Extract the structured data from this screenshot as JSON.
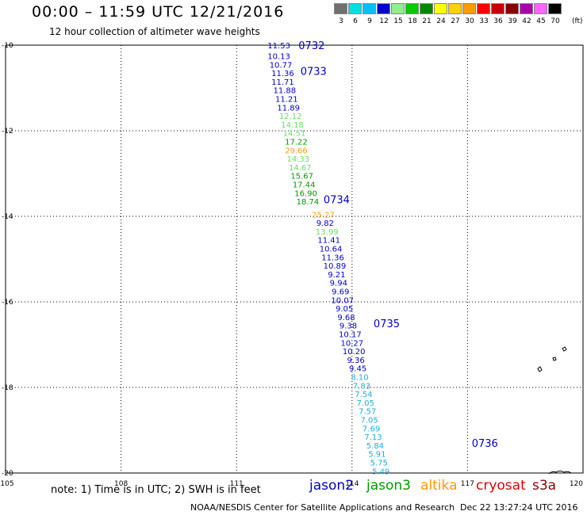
{
  "header": {
    "title": "00:00 – 11:59 UTC 12/21/2016",
    "subtitle": "12 hour collection of altimeter wave heights"
  },
  "color_scale": {
    "unit": "(ft)",
    "entries": [
      {
        "label": "3",
        "color": "#707070"
      },
      {
        "label": "6",
        "color": "#00e0e0"
      },
      {
        "label": "9",
        "color": "#00bfff"
      },
      {
        "label": "12",
        "color": "#0000d0"
      },
      {
        "label": "15",
        "color": "#90ee90"
      },
      {
        "label": "18",
        "color": "#00cc00"
      },
      {
        "label": "21",
        "color": "#008800"
      },
      {
        "label": "24",
        "color": "#ffff00"
      },
      {
        "label": "27",
        "color": "#ffd000"
      },
      {
        "label": "30",
        "color": "#ff9900"
      },
      {
        "label": "33",
        "color": "#ff0000"
      },
      {
        "label": "36",
        "color": "#cc0000"
      },
      {
        "label": "39",
        "color": "#880000"
      },
      {
        "label": "42",
        "color": "#aa00aa"
      },
      {
        "label": "45",
        "color": "#ff66ff"
      },
      {
        "label": "70",
        "color": "#000000"
      }
    ]
  },
  "map": {
    "lon_range": [
      105,
      120
    ],
    "lat_range": [
      -20,
      -10
    ],
    "lon_ticks": [
      "105",
      "108",
      "111",
      "114",
      "117",
      "120"
    ],
    "lat_ticks": [
      "-10",
      "-12",
      "-14",
      "-16",
      "-18",
      "-20"
    ],
    "colors": {
      "blue": "#0000cc",
      "cyan": "#22aadd",
      "lightgreen": "#66e066",
      "green": "#009900",
      "orange": "#f0a020"
    },
    "points": [
      {
        "label": "11.53",
        "lon": 112.1,
        "lat": -10.0,
        "color": "#0000cc"
      },
      {
        "label": "10.13",
        "lon": 112.1,
        "lat": -10.25,
        "color": "#0000cc"
      },
      {
        "label": "10.77",
        "lon": 112.15,
        "lat": -10.45,
        "color": "#0000cc"
      },
      {
        "label": "11.36",
        "lon": 112.2,
        "lat": -10.65,
        "color": "#0000cc"
      },
      {
        "label": "11.71",
        "lon": 112.2,
        "lat": -10.85,
        "color": "#0000cc"
      },
      {
        "label": "11.88",
        "lon": 112.25,
        "lat": -11.05,
        "color": "#0000cc"
      },
      {
        "label": "11.21",
        "lon": 112.3,
        "lat": -11.25,
        "color": "#0000cc"
      },
      {
        "label": "11.89",
        "lon": 112.35,
        "lat": -11.45,
        "color": "#0000cc"
      },
      {
        "label": "12.12",
        "lon": 112.4,
        "lat": -11.65,
        "color": "#66e066"
      },
      {
        "label": "14.18",
        "lon": 112.45,
        "lat": -11.85,
        "color": "#66e066"
      },
      {
        "label": "14.51",
        "lon": 112.5,
        "lat": -12.05,
        "color": "#66e066"
      },
      {
        "label": "17.22",
        "lon": 112.55,
        "lat": -12.25,
        "color": "#009900"
      },
      {
        "label": "29.66",
        "lon": 112.55,
        "lat": -12.45,
        "color": "#f0a020"
      },
      {
        "label": "14.33",
        "lon": 112.6,
        "lat": -12.65,
        "color": "#66e066"
      },
      {
        "label": "14.67",
        "lon": 112.65,
        "lat": -12.85,
        "color": "#66e066"
      },
      {
        "label": "15.67",
        "lon": 112.7,
        "lat": -13.05,
        "color": "#009900"
      },
      {
        "label": "17.44",
        "lon": 112.75,
        "lat": -13.25,
        "color": "#009900"
      },
      {
        "label": "16.90",
        "lon": 112.8,
        "lat": -13.45,
        "color": "#009900"
      },
      {
        "label": "18.74",
        "lon": 112.85,
        "lat": -13.65,
        "color": "#009900"
      },
      {
        "label": "25.27",
        "lon": 113.25,
        "lat": -13.95,
        "color": "#f0a020"
      },
      {
        "label": "9.82",
        "lon": 113.3,
        "lat": -14.15,
        "color": "#0000cc"
      },
      {
        "label": "13.99",
        "lon": 113.35,
        "lat": -14.35,
        "color": "#66e066"
      },
      {
        "label": "11.41",
        "lon": 113.4,
        "lat": -14.55,
        "color": "#0000cc"
      },
      {
        "label": "10.64",
        "lon": 113.45,
        "lat": -14.75,
        "color": "#0000cc"
      },
      {
        "label": "11.36",
        "lon": 113.5,
        "lat": -14.95,
        "color": "#0000cc"
      },
      {
        "label": "10.89",
        "lon": 113.55,
        "lat": -15.15,
        "color": "#0000cc"
      },
      {
        "label": "9.21",
        "lon": 113.6,
        "lat": -15.35,
        "color": "#0000cc"
      },
      {
        "label": "9.94",
        "lon": 113.65,
        "lat": -15.55,
        "color": "#0000cc"
      },
      {
        "label": "9.69",
        "lon": 113.7,
        "lat": -15.75,
        "color": "#0000cc"
      },
      {
        "label": "10.07",
        "lon": 113.75,
        "lat": -15.95,
        "color": "#0000cc"
      },
      {
        "label": "9.05",
        "lon": 113.8,
        "lat": -16.15,
        "color": "#0000cc"
      },
      {
        "label": "9.68",
        "lon": 113.85,
        "lat": -16.35,
        "color": "#0000cc"
      },
      {
        "label": "9.38",
        "lon": 113.9,
        "lat": -16.55,
        "color": "#0000cc"
      },
      {
        "label": "10.17",
        "lon": 113.95,
        "lat": -16.75,
        "color": "#0000cc"
      },
      {
        "label": "10.27",
        "lon": 114.0,
        "lat": -16.95,
        "color": "#0000cc"
      },
      {
        "label": "10.20",
        "lon": 114.05,
        "lat": -17.15,
        "color": "#0000cc"
      },
      {
        "label": "9.36",
        "lon": 114.1,
        "lat": -17.35,
        "color": "#0000cc"
      },
      {
        "label": "9.45",
        "lon": 114.15,
        "lat": -17.55,
        "color": "#0000cc"
      },
      {
        "label": "8.10",
        "lon": 114.2,
        "lat": -17.75,
        "color": "#22aadd"
      },
      {
        "label": "7.83",
        "lon": 114.25,
        "lat": -17.95,
        "color": "#22aadd"
      },
      {
        "label": "7.54",
        "lon": 114.3,
        "lat": -18.15,
        "color": "#22aadd"
      },
      {
        "label": "7.05",
        "lon": 114.35,
        "lat": -18.35,
        "color": "#22aadd"
      },
      {
        "label": "7.57",
        "lon": 114.4,
        "lat": -18.55,
        "color": "#22aadd"
      },
      {
        "label": "7.05",
        "lon": 114.45,
        "lat": -18.75,
        "color": "#22aadd"
      },
      {
        "label": "7.69",
        "lon": 114.5,
        "lat": -18.95,
        "color": "#22aadd"
      },
      {
        "label": "7.13",
        "lon": 114.55,
        "lat": -19.15,
        "color": "#22aadd"
      },
      {
        "label": "5.84",
        "lon": 114.6,
        "lat": -19.35,
        "color": "#22aadd"
      },
      {
        "label": "5.91",
        "lon": 114.65,
        "lat": -19.55,
        "color": "#22aadd"
      },
      {
        "label": "5.75",
        "lon": 114.7,
        "lat": -19.75,
        "color": "#22aadd"
      },
      {
        "label": "5.49",
        "lon": 114.75,
        "lat": -19.95,
        "color": "#22aadd"
      }
    ],
    "time_labels": [
      {
        "label": "0732",
        "lon": 112.95,
        "lat": -10.0
      },
      {
        "label": "0733",
        "lon": 113.0,
        "lat": -10.6
      },
      {
        "label": "0734",
        "lon": 113.6,
        "lat": -13.6
      },
      {
        "label": "0735",
        "lon": 114.9,
        "lat": -16.5
      },
      {
        "label": "0736",
        "lon": 117.45,
        "lat": -19.3
      }
    ]
  },
  "footer": {
    "note": "note: 1) Time is in UTC; 2) SWH is in feet",
    "legend": [
      {
        "label": "jason2",
        "color": "#0000cc"
      },
      {
        "label": "jason3",
        "color": "#009900"
      },
      {
        "label": "altika",
        "color": "#ff9900"
      },
      {
        "label": "cryosat",
        "color": "#dd0000"
      },
      {
        "label": "s3a",
        "color": "#880000"
      }
    ],
    "credit": "NOAA/NESDIS Center for Satellite Applications and Research",
    "timestamp": "Dec 22 13:27:24 UTC 2016"
  }
}
